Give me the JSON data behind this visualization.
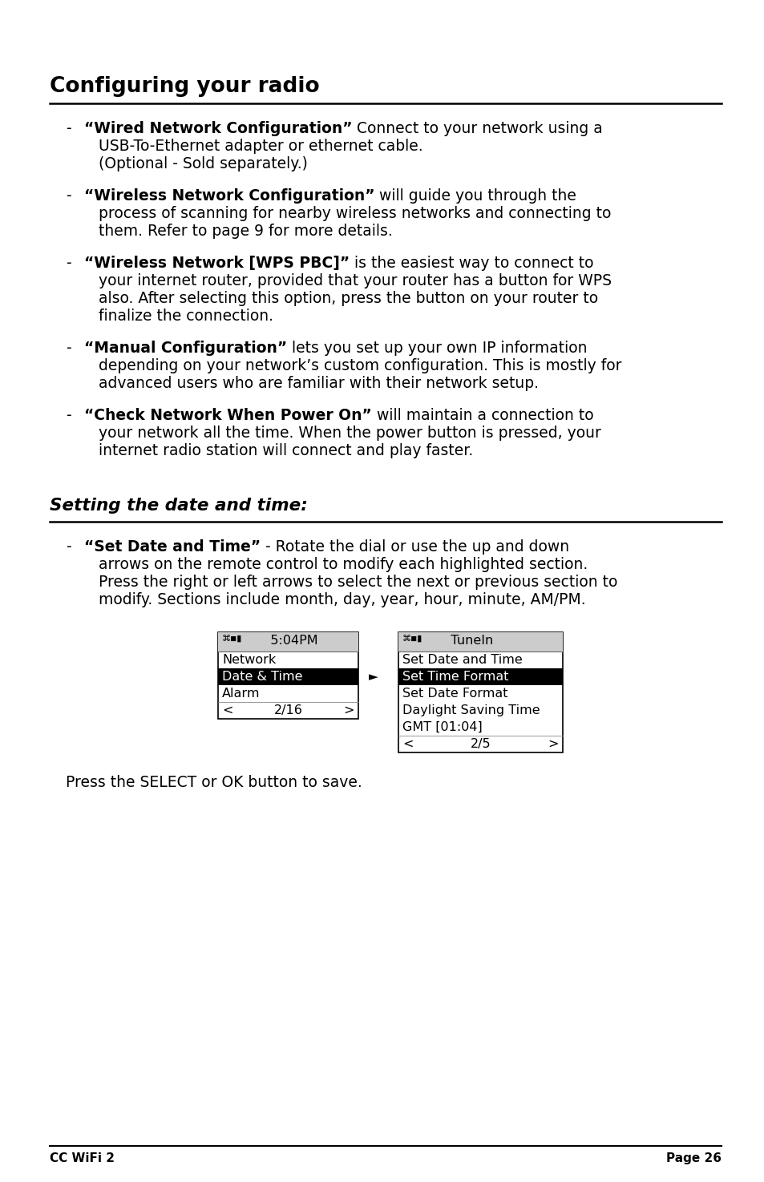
{
  "title": "Configuring your radio",
  "section2_title": "Setting the date and time:",
  "bg_color": "#ffffff",
  "text_color": "#000000",
  "bullet_items": [
    {
      "bold_part": "“Wired Network Configuration”",
      "normal_part": " Connect to your network using a\nUSB-To-Ethernet adapter or ethernet cable.\n(Optional - Sold separately.)"
    },
    {
      "bold_part": "“Wireless Network Configuration”",
      "normal_part": " will guide you through the\nprocess of scanning for nearby wireless networks and connecting to\nthem. Refer to page 9 for more details."
    },
    {
      "bold_part": "“Wireless Network [WPS PBC]”",
      "normal_part": " is the easiest way to connect to\nyour internet router, provided that your router has a button for WPS\nalso. After selecting this option, press the button on your router to\nfinalize the connection."
    },
    {
      "bold_part": "“Manual Configuration”",
      "normal_part": " lets you set up your own IP information\ndepending on your network’s custom configuration. This is mostly for\nadvanced users who are familiar with their network setup."
    },
    {
      "bold_part": "“Check Network When Power On”",
      "normal_part": " will maintain a connection to\nyour network all the time. When the power button is pressed, your\ninternet radio station will connect and play faster."
    }
  ],
  "section2_bullet": {
    "bold_part": "“Set Date and Time”",
    "normal_part": " - Rotate the dial or use the up and down\narrows on the remote control to modify each highlighted section.\nPress the right or left arrows to select the next or previous section to\nmodify. Sections include month, day, year, hour, minute, AM/PM."
  },
  "left_screen": {
    "header": "   5:04PM",
    "rows": [
      "Network",
      "Date & Time",
      "Alarm"
    ],
    "highlighted_row": 1,
    "footer_left": "<",
    "footer_mid": "2/16",
    "footer_right": ">"
  },
  "right_screen": {
    "header": "   TuneIn",
    "rows": [
      "Set Date and Time",
      "Set Time Format",
      "Set Date Format",
      "Daylight Saving Time",
      "GMT [01:04]"
    ],
    "highlighted_row": 1,
    "footer_left": "<",
    "footer_mid": "2/5",
    "footer_right": ">"
  },
  "press_text": "Press the SELECT or OK button to save.",
  "footer_left": "CC WiFi 2",
  "footer_right": "Page 26"
}
